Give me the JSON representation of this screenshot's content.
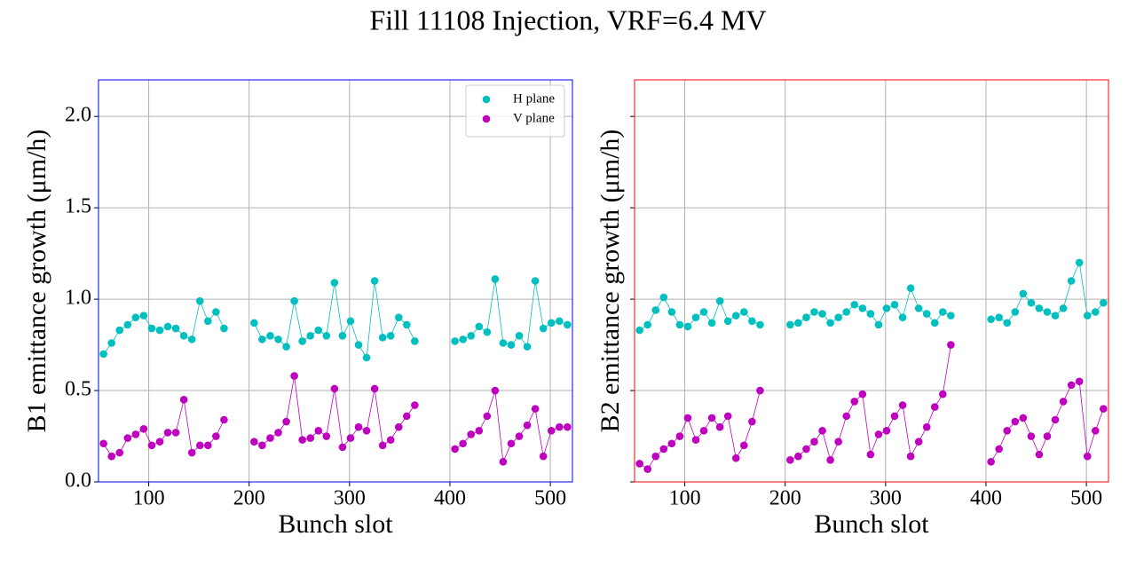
{
  "title": "Fill 11108 Injection, VRF=6.4 MV",
  "chart_data": [
    {
      "type": "line",
      "ylabel": "B1 emittance growth (μm/h)",
      "xlabel": "Bunch slot",
      "frame_color": "#0000ff",
      "legend": "upper right",
      "grid": true,
      "xlim": [
        50,
        522
      ],
      "ylim": [
        0,
        2.2
      ],
      "xticks": [
        100,
        200,
        300,
        400,
        500
      ],
      "yticks": [
        {
          "value": 0,
          "label": "0.0"
        },
        0.5,
        {
          "value": 1,
          "label": "1.0"
        },
        1.5,
        {
          "value": 2,
          "label": "2.0"
        }
      ],
      "ytick_labels": true,
      "x": [
        55,
        63,
        71,
        79,
        87,
        95,
        103,
        111,
        119,
        127,
        135,
        143,
        151,
        159,
        167,
        175,
        190,
        205,
        213,
        221,
        229,
        237,
        245,
        253,
        261,
        269,
        277,
        285,
        293,
        301,
        309,
        317,
        325,
        333,
        341,
        349,
        357,
        365,
        390,
        405,
        413,
        421,
        429,
        437,
        445,
        453,
        461,
        469,
        477,
        485,
        493,
        501,
        509,
        517
      ],
      "series": [
        {
          "name": "H plane",
          "color": "#00bfbf",
          "values": [
            0.7,
            0.76,
            0.83,
            0.86,
            0.9,
            0.91,
            0.84,
            0.83,
            0.85,
            0.84,
            0.8,
            0.78,
            0.99,
            0.88,
            0.93,
            0.84,
            null,
            0.87,
            0.78,
            0.8,
            0.78,
            0.74,
            0.99,
            0.77,
            0.8,
            0.83,
            0.8,
            1.09,
            0.8,
            0.88,
            0.75,
            0.68,
            1.1,
            0.79,
            0.8,
            0.9,
            0.86,
            0.77,
            null,
            0.77,
            0.78,
            0.8,
            0.85,
            0.82,
            1.11,
            0.76,
            0.75,
            0.8,
            0.74,
            1.1,
            0.84,
            0.87,
            0.88,
            0.86
          ]
        },
        {
          "name": "V plane",
          "color": "#bf00bf",
          "values": [
            0.21,
            0.14,
            0.16,
            0.24,
            0.26,
            0.29,
            0.2,
            0.22,
            0.27,
            0.27,
            0.45,
            0.16,
            0.2,
            0.2,
            0.25,
            0.34,
            null,
            0.22,
            0.2,
            0.24,
            0.27,
            0.33,
            0.58,
            0.23,
            0.24,
            0.28,
            0.25,
            0.51,
            0.19,
            0.24,
            0.3,
            0.28,
            0.51,
            0.2,
            0.23,
            0.3,
            0.36,
            0.42,
            null,
            0.18,
            0.21,
            0.26,
            0.28,
            0.36,
            0.5,
            0.11,
            0.21,
            0.25,
            0.31,
            0.4,
            0.14,
            0.28,
            0.3,
            0.3
          ]
        }
      ]
    },
    {
      "type": "line",
      "ylabel": "B2 emittance growth (μm/h)",
      "xlabel": "Bunch slot",
      "frame_color": "#ff0000",
      "grid": true,
      "xlim": [
        50,
        522
      ],
      "ylim": [
        0,
        2.2
      ],
      "xticks": [
        100,
        200,
        300,
        400,
        500
      ],
      "yticks": [
        {
          "value": 0,
          "label": "0.0"
        },
        0.5,
        {
          "value": 1,
          "label": "1.0"
        },
        1.5,
        {
          "value": 2,
          "label": "2.0"
        }
      ],
      "ytick_labels": false,
      "x": [
        55,
        63,
        71,
        79,
        87,
        95,
        103,
        111,
        119,
        127,
        135,
        143,
        151,
        159,
        167,
        175,
        190,
        205,
        213,
        221,
        229,
        237,
        245,
        253,
        261,
        269,
        277,
        285,
        293,
        301,
        309,
        317,
        325,
        333,
        341,
        349,
        357,
        365,
        390,
        405,
        413,
        421,
        429,
        437,
        445,
        453,
        461,
        469,
        477,
        485,
        493,
        501,
        509,
        517
      ],
      "series": [
        {
          "color": "#00bfbf",
          "values": [
            0.83,
            0.86,
            0.94,
            1.01,
            0.93,
            0.86,
            0.85,
            0.9,
            0.93,
            0.87,
            0.99,
            0.88,
            0.91,
            0.93,
            0.88,
            0.86,
            null,
            0.86,
            0.87,
            0.9,
            0.93,
            0.92,
            0.87,
            0.9,
            0.93,
            0.97,
            0.95,
            0.92,
            0.86,
            0.95,
            0.97,
            0.9,
            1.06,
            0.95,
            0.92,
            0.87,
            0.93,
            0.91,
            null,
            0.89,
            0.9,
            0.87,
            0.93,
            1.03,
            0.98,
            0.95,
            0.93,
            0.91,
            0.95,
            1.1,
            1.2,
            0.91,
            0.93,
            0.98
          ]
        },
        {
          "color": "#bf00bf",
          "values": [
            0.1,
            0.07,
            0.14,
            0.18,
            0.21,
            0.25,
            0.35,
            0.23,
            0.28,
            0.35,
            0.3,
            0.36,
            0.13,
            0.2,
            0.33,
            0.5,
            null,
            0.12,
            0.14,
            0.18,
            0.22,
            0.28,
            0.12,
            0.22,
            0.36,
            0.44,
            0.48,
            0.15,
            0.26,
            0.28,
            0.36,
            0.42,
            0.14,
            0.22,
            0.3,
            0.41,
            0.48,
            0.75,
            null,
            0.11,
            0.18,
            0.28,
            0.33,
            0.35,
            0.25,
            0.15,
            0.25,
            0.34,
            0.44,
            0.53,
            0.55,
            0.14,
            0.28,
            0.4
          ]
        }
      ]
    }
  ]
}
